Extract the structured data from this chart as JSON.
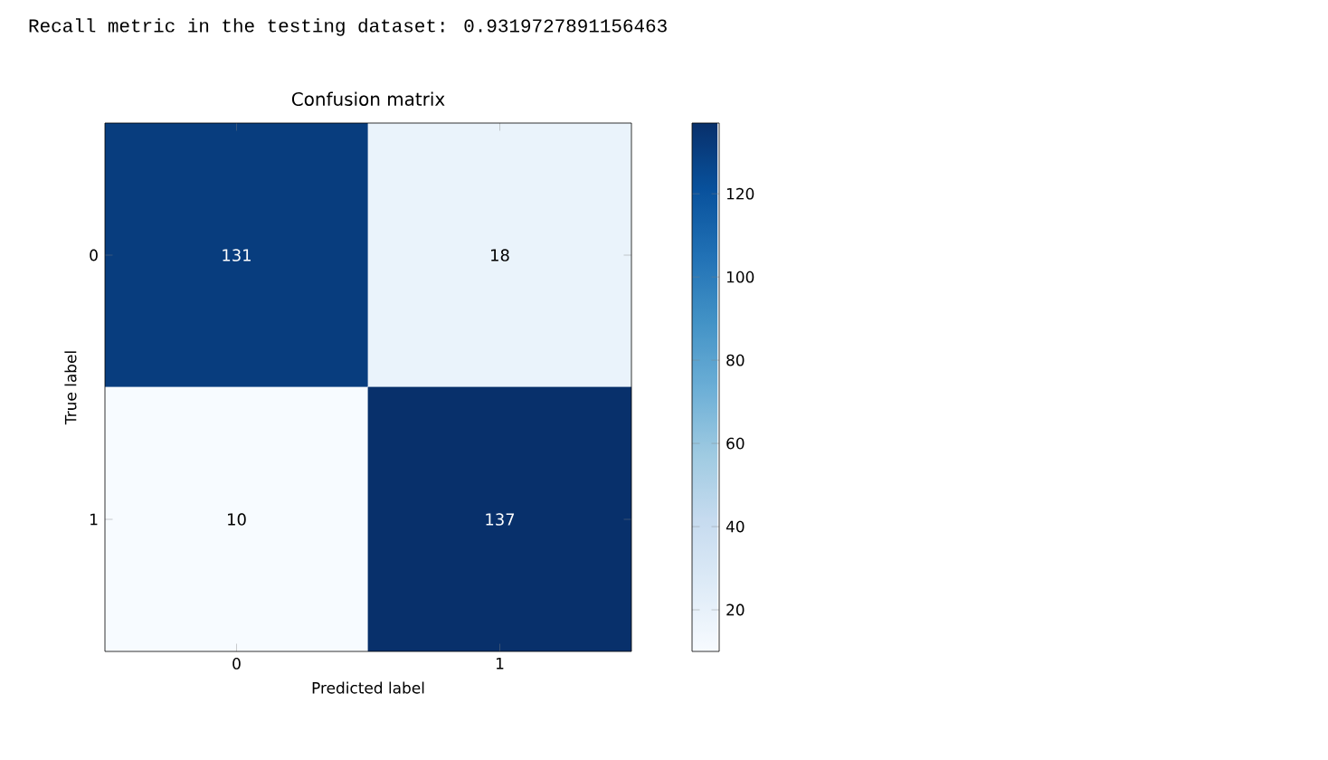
{
  "chart_data": {
    "type": "heatmap",
    "title": "Confusion matrix",
    "xlabel": "Predicted label",
    "ylabel": "True label",
    "annotations": [
      "Recall metric in the testing dataset:  0.9319727891156463"
    ],
    "categories": [
      "0",
      "1"
    ],
    "y_categories": [
      "0",
      "1"
    ],
    "cells": [
      [
        131,
        18
      ],
      [
        10,
        137
      ]
    ],
    "clim": [
      10,
      137
    ],
    "cticks": [
      20,
      40,
      60,
      80,
      100,
      120
    ],
    "data_labels": true
  }
}
